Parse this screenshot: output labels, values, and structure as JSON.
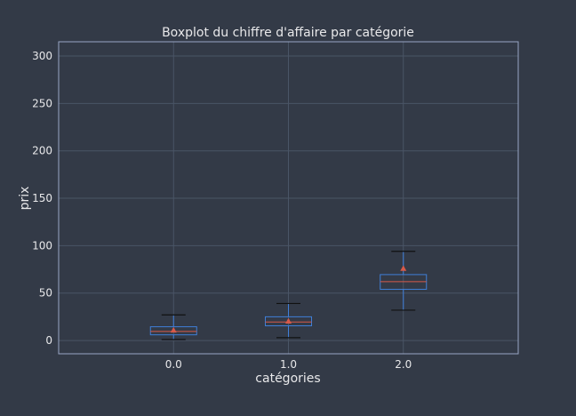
{
  "chart_data": {
    "type": "boxplot",
    "title": "Boxplot du chiffre d'affaire par catégorie",
    "xlabel": "catégories",
    "ylabel": "prix",
    "categories": [
      "0.0",
      "1.0",
      "2.0"
    ],
    "ylim": [
      -14,
      315
    ],
    "yticks": [
      0,
      50,
      100,
      150,
      200,
      250,
      300
    ],
    "grid": true,
    "boxes": [
      {
        "category": "0.0",
        "whisker_low": 1,
        "q1": 6,
        "median": 9.5,
        "q3": 14.5,
        "whisker_high": 27,
        "mean": 11
      },
      {
        "category": "1.0",
        "whisker_low": 3,
        "q1": 15.5,
        "median": 19.5,
        "q3": 25,
        "whisker_high": 39,
        "mean": 20.5
      },
      {
        "category": "2.0",
        "whisker_low": 32,
        "q1": 54,
        "median": 62,
        "q3": 69.5,
        "whisker_high": 94,
        "mean": 76
      }
    ],
    "colors": {
      "background": "#333a47",
      "grid": "#4a5566",
      "frame": "#9aa6c4",
      "box": "#3f7fd8",
      "whisker": "#3f7fd8",
      "cap": "#111111",
      "median": "#d65a4a",
      "mean": "#d65a4a",
      "text": "#e8e8ea"
    }
  }
}
